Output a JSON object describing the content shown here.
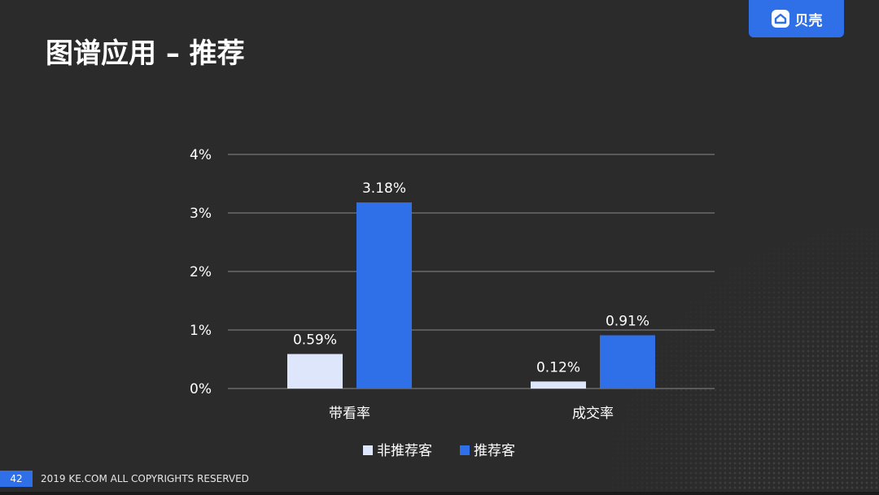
{
  "title": "图谱应用 – 推荐",
  "logo": {
    "text": "贝壳",
    "icon": "ke-logo-icon",
    "color": "#2f6fe8"
  },
  "footer": {
    "page_number": "42",
    "copyright": "2019 KE.COM ALL COPYRIGHTS RESERVED"
  },
  "chart_data": {
    "type": "bar",
    "categories": [
      "带看率",
      "成交率"
    ],
    "series": [
      {
        "name": "非推荐客",
        "values": [
          0.59,
          0.12
        ],
        "labels": [
          "0.59%",
          "0.12%"
        ],
        "color": "#dde6fb"
      },
      {
        "name": "推荐客",
        "values": [
          3.18,
          0.91
        ],
        "labels": [
          "3.18%",
          "0.91%"
        ],
        "color": "#2f6fe8"
      }
    ],
    "ylim": [
      0,
      4
    ],
    "yticks": [
      0,
      1,
      2,
      3,
      4
    ],
    "ytick_labels": [
      "0%",
      "1%",
      "2%",
      "3%",
      "4%"
    ],
    "grid": true,
    "legend_position": "bottom"
  }
}
